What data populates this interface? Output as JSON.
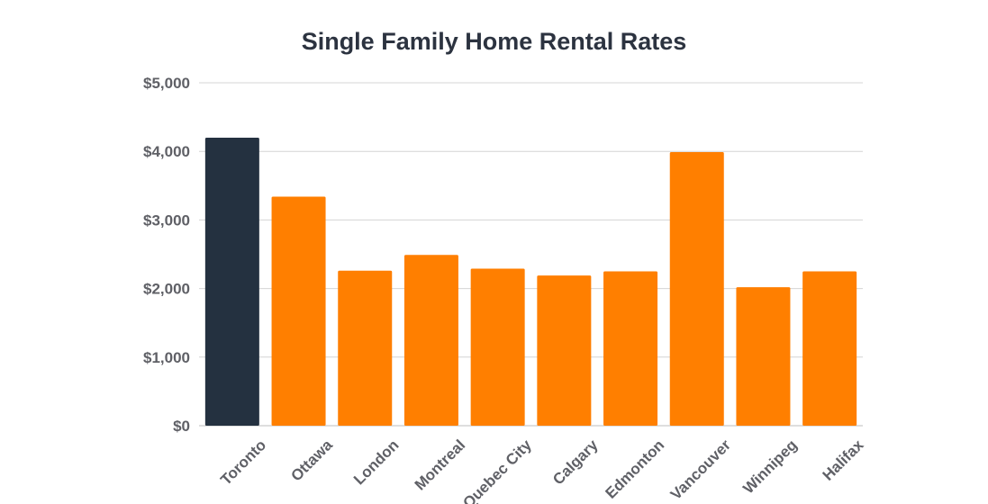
{
  "chart_data": {
    "type": "bar",
    "title": "Single Family Home Rental Rates",
    "xlabel": "",
    "ylabel": "",
    "categories": [
      "Toronto",
      "Ottawa",
      "London",
      "Montreal",
      "Quebec City",
      "Calgary",
      "Edmonton",
      "Vancouver",
      "Winnipeg",
      "Halifax"
    ],
    "values": [
      4200,
      3340,
      2260,
      2490,
      2290,
      2190,
      2250,
      3990,
      2020,
      2250
    ],
    "ylim": [
      0,
      5000
    ],
    "yticks": [
      0,
      1000,
      2000,
      3000,
      4000,
      5000
    ],
    "ytick_labels": [
      "$0",
      "$1,000",
      "$2,000",
      "$3,000",
      "$4,000",
      "$5,000"
    ],
    "grid": true,
    "legend": "none",
    "colors": {
      "highlight": "#243140",
      "default": "#ff7f00"
    },
    "highlight_category": "Toronto"
  }
}
